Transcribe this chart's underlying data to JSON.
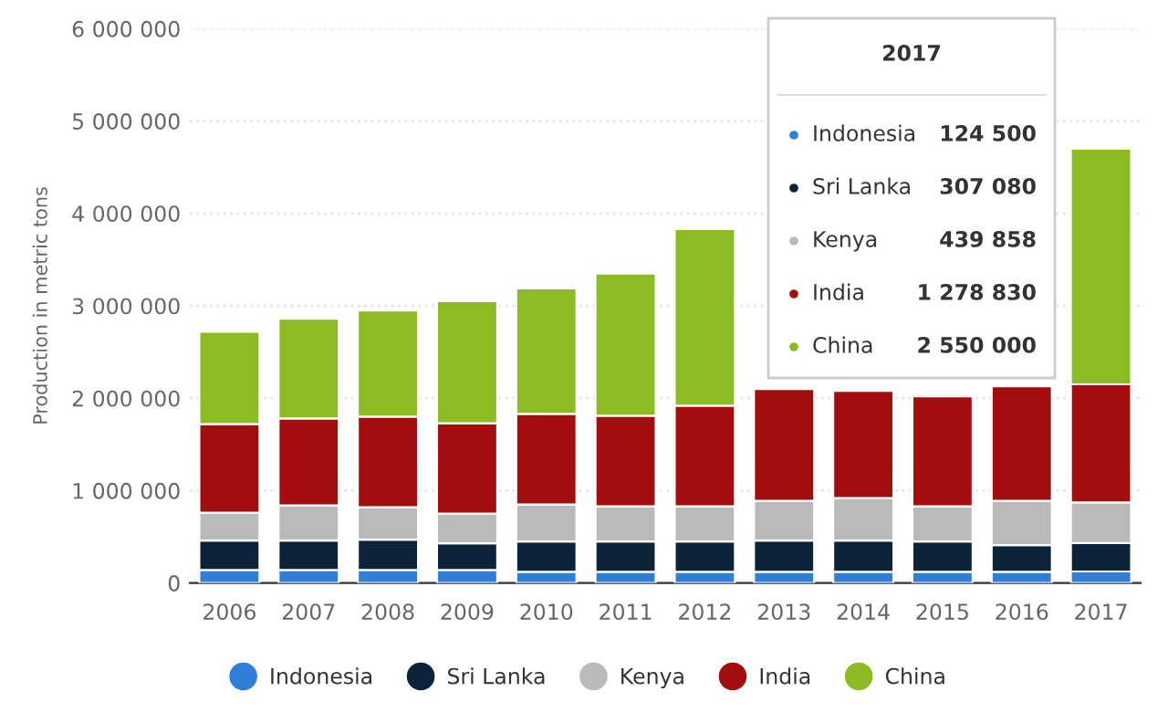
{
  "chart_data": {
    "type": "bar",
    "stacked": true,
    "ylabel": "Production in metric tons",
    "categories": [
      "2006",
      "2007",
      "2008",
      "2009",
      "2010",
      "2011",
      "2012",
      "2013",
      "2014",
      "2015",
      "2016",
      "2017"
    ],
    "series": [
      {
        "name": "Indonesia",
        "color": "#2f7ed8",
        "values": [
          140000,
          140000,
          140000,
          140000,
          120000,
          120000,
          120000,
          120000,
          120000,
          120000,
          120000,
          124500
        ]
      },
      {
        "name": "Sri Lanka",
        "color": "#0d233a",
        "values": [
          320000,
          320000,
          330000,
          290000,
          330000,
          330000,
          330000,
          340000,
          340000,
          330000,
          290000,
          307080
        ]
      },
      {
        "name": "Kenya",
        "color": "#bababa",
        "values": [
          300000,
          380000,
          350000,
          320000,
          400000,
          380000,
          380000,
          430000,
          460000,
          380000,
          480000,
          439858
        ]
      },
      {
        "name": "India",
        "color": "#a20e0e",
        "values": [
          960000,
          940000,
          980000,
          980000,
          980000,
          980000,
          1090000,
          1210000,
          1160000,
          1190000,
          1240000,
          1278830
        ]
      },
      {
        "name": "China",
        "color": "#8bbc21",
        "values": [
          1000000,
          1080000,
          1150000,
          1320000,
          1360000,
          1540000,
          1910000,
          null,
          null,
          null,
          null,
          2550000
        ]
      }
    ],
    "ylim": [
      0,
      6000000
    ],
    "yticks": [
      {
        "value": 0,
        "label": "0"
      },
      {
        "value": 1000000,
        "label": "1 000 000"
      },
      {
        "value": 2000000,
        "label": "2 000 000"
      },
      {
        "value": 3000000,
        "label": "3 000 000"
      },
      {
        "value": 4000000,
        "label": "4 000 000"
      },
      {
        "value": 5000000,
        "label": "5 000 000"
      },
      {
        "value": 6000000,
        "label": "6 000 000"
      }
    ],
    "grid": "y",
    "legend": "bottom",
    "marker": "circle",
    "annotations": [
      "2017",
      "Indonesia",
      "124 500",
      "Sri Lanka",
      "307 080",
      "Kenya",
      "439 858",
      "India",
      "1 278 830",
      "China",
      "2 550 000"
    ]
  }
}
